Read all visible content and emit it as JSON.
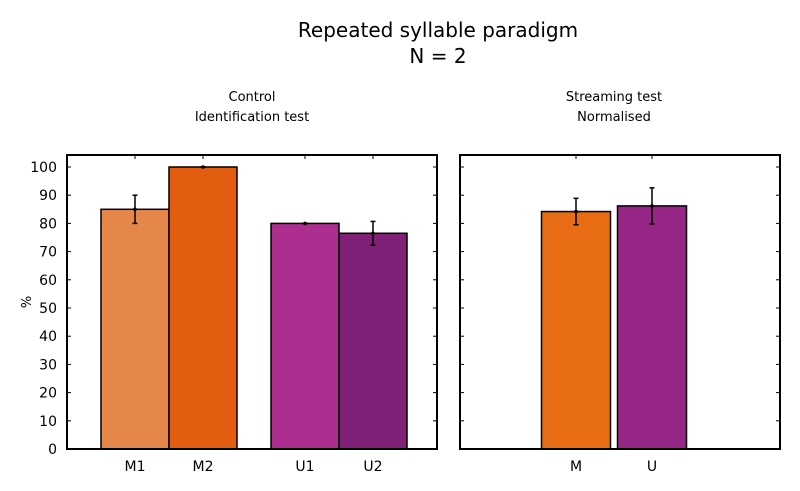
{
  "title": "Repeated syllable paradigm",
  "subtitle": "N = 2",
  "chart_data": [
    {
      "type": "bar",
      "title": "Control",
      "subtitle": "Identification test",
      "ylabel": "%",
      "ylim": [
        0,
        100
      ],
      "yticks": [
        0,
        10,
        20,
        30,
        40,
        50,
        60,
        70,
        80,
        90,
        100
      ],
      "grid": false,
      "categories": [
        "M1",
        "M2",
        "U1",
        "U2"
      ],
      "values": [
        85,
        100,
        80,
        76.5
      ],
      "errors": [
        5,
        0,
        0,
        4.2
      ],
      "colors": [
        "#e5874b",
        "#e35d10",
        "#ad2e8f",
        "#812077"
      ]
    },
    {
      "type": "bar",
      "title": "Streaming test",
      "subtitle": "Normalised",
      "ylim": [
        0,
        100
      ],
      "grid": false,
      "categories": [
        "M",
        "U"
      ],
      "values": [
        84.2,
        86.2
      ],
      "errors": [
        4.7,
        6.4
      ],
      "colors": [
        "#e86c13",
        "#962686"
      ]
    }
  ]
}
